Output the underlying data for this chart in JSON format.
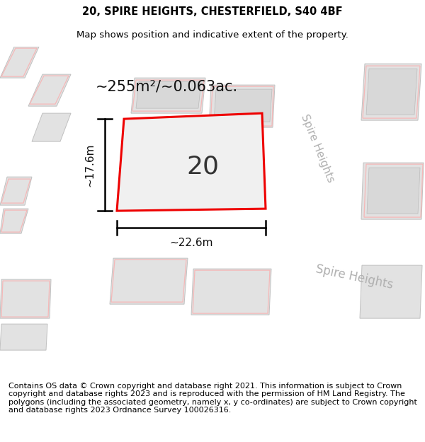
{
  "title_line1": "20, SPIRE HEIGHTS, CHESTERFIELD, S40 4BF",
  "title_line2": "Map shows position and indicative extent of the property.",
  "footer_text": "Contains OS data © Crown copyright and database right 2021. This information is subject to Crown copyright and database rights 2023 and is reproduced with the permission of HM Land Registry. The polygons (including the associated geometry, namely x, y co-ordinates) are subject to Crown copyright and database rights 2023 Ordnance Survey 100026316.",
  "area_label": "~255m²/~0.063ac.",
  "width_label": "~22.6m",
  "height_label": "~17.6m",
  "number_label": "20",
  "map_bg": "#f2f2f2",
  "building_fill": "#e2e2e2",
  "building_stroke": "#c0c0c0",
  "road_fill": "#ffffff",
  "red_outline": "#ee0000",
  "red_faint": "#f5b8b8",
  "title_fontsize": 10.5,
  "subtitle_fontsize": 9.5,
  "footer_fontsize": 8.0,
  "area_fontsize": 15,
  "dim_fontsize": 11,
  "number_fontsize": 26,
  "road_label_fontsize": 11
}
